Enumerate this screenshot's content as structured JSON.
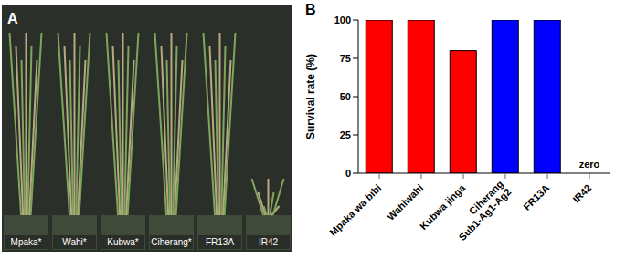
{
  "photo_panel": {
    "letter": "A",
    "pot_labels": [
      "Mpaka*",
      "Wahi*",
      "Kubwa*",
      "Ciherang*",
      "FR13A",
      "IR42"
    ]
  },
  "chart_panel_letter": "B",
  "chart_data": {
    "type": "bar",
    "y_label": "Survival rate (%)",
    "categories": [
      "Mpaka wa bibi",
      "Wahiwahi",
      "Kubwa jinga",
      "Ciherang Sub1-Ag1-Ag2",
      "FR13A",
      "IR42"
    ],
    "values": [
      100,
      100,
      80,
      100,
      100,
      0
    ],
    "colors": [
      "#ff0000",
      "#ff0000",
      "#ff0000",
      "#0000ff",
      "#0000ff",
      "#0000ff"
    ],
    "ylim": [
      0,
      100
    ],
    "yticks": [
      0,
      25,
      50,
      75,
      100
    ],
    "grid": false,
    "annotations": [
      {
        "text": "zero",
        "x": "IR42",
        "y": 0
      }
    ]
  }
}
